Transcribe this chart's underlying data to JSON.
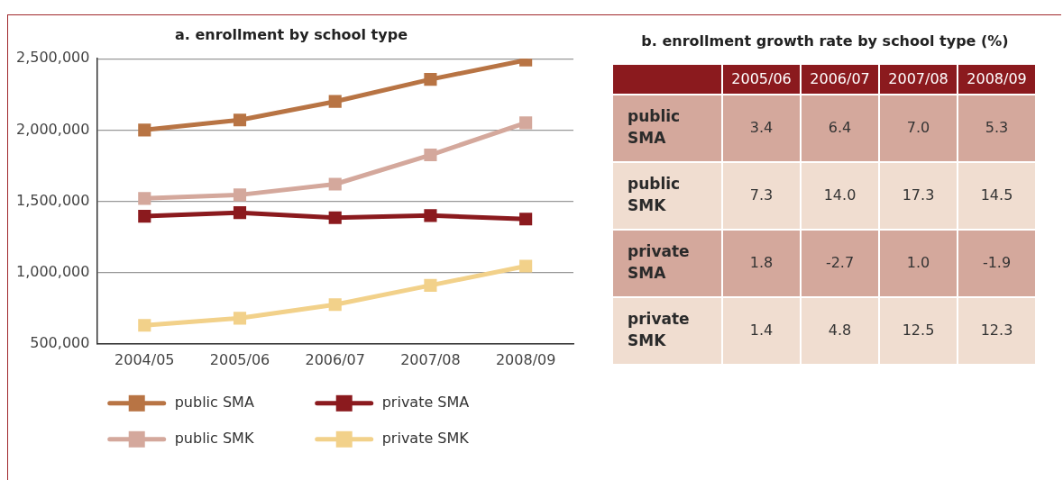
{
  "chart_data": [
    {
      "type": "line",
      "title": "a. enrollment by school type",
      "categories": [
        "2004/05",
        "2005/06",
        "2006/07",
        "2007/08",
        "2008/09"
      ],
      "series": [
        {
          "name": "public SMA",
          "color": "#b87444",
          "values": [
            2000000,
            2070000,
            2200000,
            2355000,
            2490000
          ]
        },
        {
          "name": "private SMA",
          "color": "#8b1a1e",
          "values": [
            1395000,
            1420000,
            1385000,
            1400000,
            1375000
          ]
        },
        {
          "name": "public SMK",
          "color": "#d4a89c",
          "values": [
            1520000,
            1545000,
            1620000,
            1825000,
            2050000
          ]
        },
        {
          "name": "private SMK",
          "color": "#f2d18a",
          "values": [
            630000,
            680000,
            775000,
            910000,
            1045000
          ]
        }
      ],
      "ylim": [
        500000,
        2500000
      ],
      "yticks": [
        {
          "value": 500000,
          "label": "500,000"
        },
        {
          "value": 1000000,
          "label": "1,000,000"
        },
        {
          "value": 1500000,
          "label": "1,500,000"
        },
        {
          "value": 2000000,
          "label": "2,000,000"
        },
        {
          "value": 2500000,
          "label": "2,500,000"
        }
      ],
      "grid": "y",
      "legend": "bottom",
      "marker": "square",
      "line_style": "solid"
    },
    {
      "type": "heatmap",
      "title": "b. enrollment growth rate by school type (%)",
      "categories": [
        "2005/06",
        "2006/07",
        "2007/08",
        "2008/09"
      ],
      "y_categories": [
        "public SMA",
        "public SMK",
        "private SMA",
        "private SMK"
      ],
      "cells": [
        [
          3.4,
          6.4,
          7.0,
          5.3
        ],
        [
          7.3,
          14.0,
          17.3,
          14.5
        ],
        [
          1.8,
          -2.7,
          1.0,
          -1.9
        ],
        [
          1.4,
          4.8,
          12.5,
          12.3
        ]
      ],
      "cell_labels": [
        [
          "3.4",
          "6.4",
          "7.0",
          "5.3"
        ],
        [
          "7.3",
          "14.0",
          "17.3",
          "14.5"
        ],
        [
          "1.8",
          "-2.7",
          "1.0",
          "-1.9"
        ],
        [
          "1.4",
          "4.8",
          "12.5",
          "12.3"
        ]
      ]
    }
  ]
}
